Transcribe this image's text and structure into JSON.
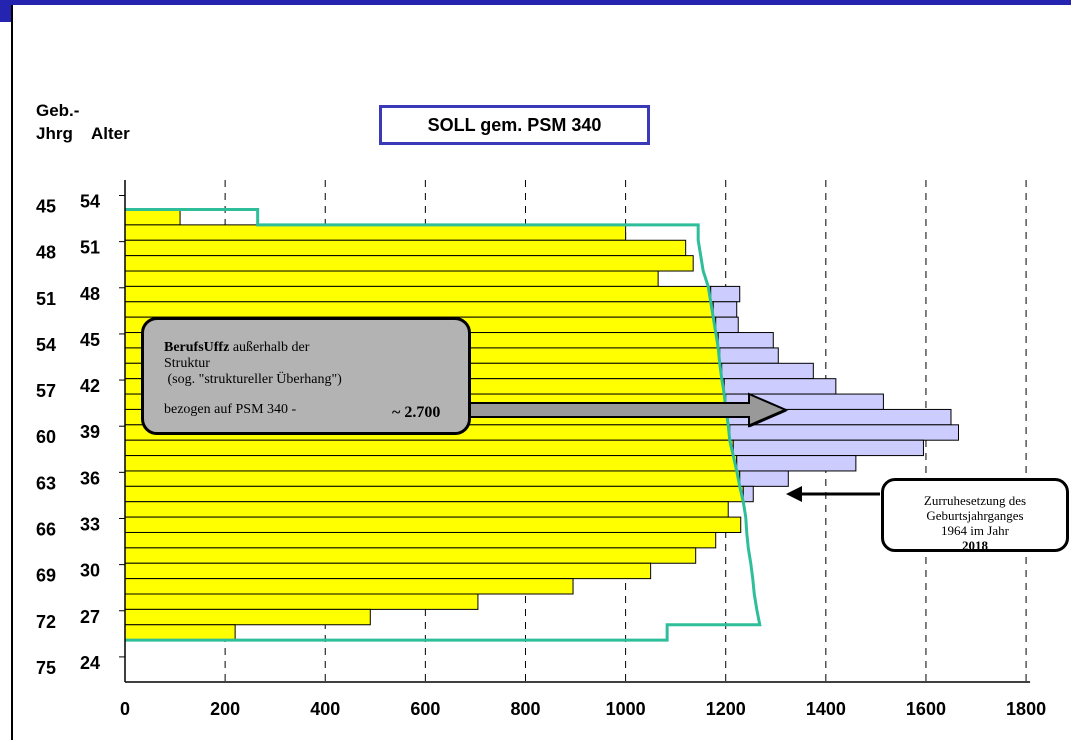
{
  "labels": {
    "geb_line1": "Geb.-",
    "geb_line2": "Jhrg",
    "alter": "Alter",
    "title": "SOLL gem. PSM 340"
  },
  "callout_main": {
    "bold": "BerufsUffz",
    "line1_rest": " außerhalb der",
    "line2": "Struktur",
    "line3": " (sog. \"struktureller Überhang\")",
    "line4": "bezogen auf PSM 340 -",
    "value": "~ 2.700"
  },
  "callout_note": {
    "line1": "Zurruhesetzung des",
    "line2": "Geburtsjahrganges",
    "line3_prefix": "1964 im Jahr ",
    "line3_bold": "2018"
  },
  "colors": {
    "frame": "#2424b0",
    "actual_bar": "#ffff00",
    "excess_bar": "#ccccff",
    "soll_line": "#2ebf9a",
    "callout_gray": "#b3b3b3",
    "arrow_gray": "#999999"
  },
  "chart_data": {
    "type": "bar",
    "orientation": "horizontal",
    "x_ticks": [
      0,
      200,
      400,
      600,
      800,
      1000,
      1200,
      1400,
      1600,
      1800
    ],
    "xlim": [
      0,
      1800
    ],
    "grid": "vertical dashed",
    "ages": [
      54,
      53,
      52,
      51,
      50,
      49,
      48,
      47,
      46,
      45,
      44,
      43,
      42,
      41,
      40,
      39,
      38,
      37,
      36,
      35,
      34,
      33,
      32,
      31,
      30,
      29,
      28,
      27,
      26,
      25,
      24
    ],
    "age_tick_labels": [
      "54",
      "51",
      "48",
      "45",
      "42",
      "39",
      "36",
      "33",
      "30",
      "27",
      "24"
    ],
    "birth_year_tick_labels": [
      "45",
      "48",
      "51",
      "54",
      "57",
      "60",
      "63",
      "66",
      "69",
      "72",
      "75"
    ],
    "bars": [
      110,
      1000,
      1120,
      1135,
      1065,
      1228,
      1222,
      1225,
      1295,
      1305,
      1375,
      1420,
      1515,
      1650,
      1665,
      1595,
      1460,
      1325,
      1255,
      1205,
      1230,
      1180,
      1140,
      1050,
      895,
      705,
      490,
      220,
      0,
      0,
      0
    ],
    "soll": [
      265,
      1145,
      1150,
      1155,
      1165,
      1170,
      1175,
      1180,
      1185,
      1188,
      1192,
      1197,
      1200,
      1205,
      1208,
      1215,
      1222,
      1228,
      1235,
      1240,
      1242,
      1245,
      1250,
      1254,
      1257,
      1262,
      1268,
      1083,
      0,
      0,
      0
    ]
  }
}
